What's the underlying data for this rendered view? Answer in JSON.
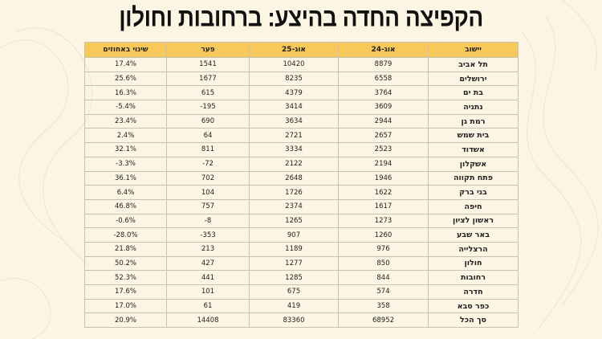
{
  "title": "הקפיצה החדה בהיצע: ברחובות וחולון",
  "table": {
    "headers": [
      "יישוב",
      "אוג-24",
      "אוג-25",
      "פער",
      "שינוי באחוזים"
    ],
    "rows": [
      [
        "תל אביב",
        "8879",
        "10420",
        "1541",
        "17.4%"
      ],
      [
        "ירושלים",
        "6558",
        "8235",
        "1677",
        "25.6%"
      ],
      [
        "בת ים",
        "3764",
        "4379",
        "615",
        "16.3%"
      ],
      [
        "נתניה",
        "3609",
        "3414",
        "-195",
        "-5.4%"
      ],
      [
        "רמת גן",
        "2944",
        "3634",
        "690",
        "23.4%"
      ],
      [
        "בית שמש",
        "2657",
        "2721",
        "64",
        "2.4%"
      ],
      [
        "אשדוד",
        "2523",
        "3334",
        "811",
        "32.1%"
      ],
      [
        "אשקלון",
        "2194",
        "2122",
        "-72",
        "-3.3%"
      ],
      [
        "פתח תקווה",
        "1946",
        "2648",
        "702",
        "36.1%"
      ],
      [
        "בני ברק",
        "1622",
        "1726",
        "104",
        "6.4%"
      ],
      [
        "חיפה",
        "1617",
        "2374",
        "757",
        "46.8%"
      ],
      [
        "ראשון לציון",
        "1273",
        "1265",
        "-8",
        "-0.6%"
      ],
      [
        "באר שבע",
        "1260",
        "907",
        "-353",
        "-28.0%"
      ],
      [
        "הרצלייה",
        "976",
        "1189",
        "213",
        "21.8%"
      ],
      [
        "חולון",
        "850",
        "1277",
        "427",
        "50.2%"
      ],
      [
        "רחובות",
        "844",
        "1285",
        "441",
        "52.3%"
      ],
      [
        "חדרה",
        "574",
        "675",
        "101",
        "17.6%"
      ],
      [
        "כפר סבא",
        "358",
        "419",
        "61",
        "17.0%"
      ],
      [
        "סך הכל",
        "68952",
        "83360",
        "14408",
        "20.9%"
      ]
    ]
  },
  "colors": {
    "header_bg": "#f7c85a",
    "page_bg": "#fdf5e4"
  }
}
